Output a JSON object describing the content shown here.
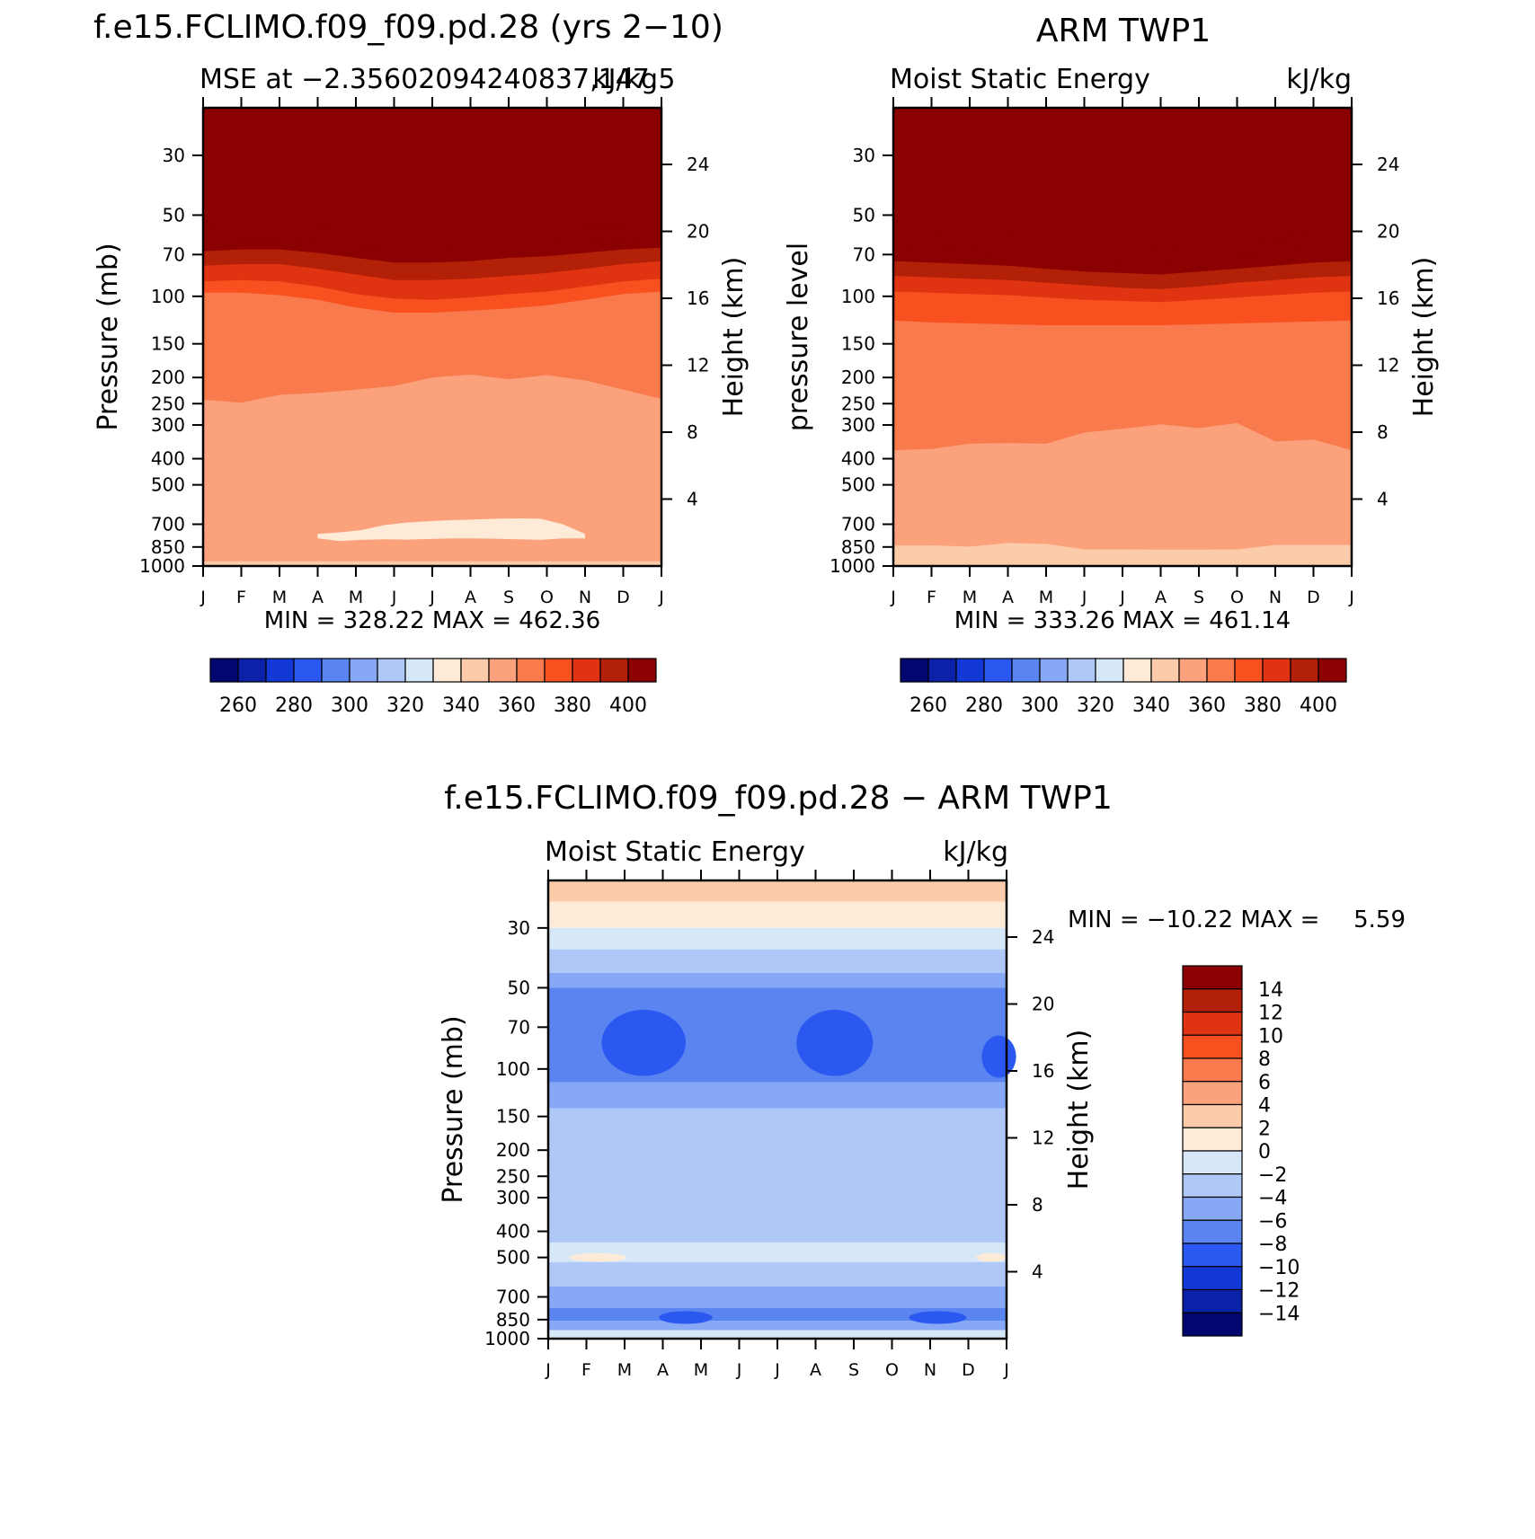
{
  "chart_data": [
    {
      "type": "heatmap",
      "title": "f.e15.FCLIMO.f09_f09.pd.28 (yrs 2−10)",
      "subtitle_left": "MSE at −2.35602094240837,147.5",
      "subtitle_right": "kJ/kg",
      "ylabel": "Pressure (mb)",
      "y2label": "Height (km)",
      "stats": "MIN = 328.22 MAX = 462.36",
      "months": [
        "J",
        "F",
        "M",
        "A",
        "M",
        "J",
        "J",
        "A",
        "S",
        "O",
        "N",
        "D",
        "J"
      ],
      "pressure_ticks": [
        30,
        50,
        70,
        100,
        150,
        200,
        250,
        300,
        400,
        500,
        700,
        850,
        1000
      ],
      "height_ticks": [
        24,
        20,
        16,
        12,
        8,
        4
      ],
      "ylim": [
        1000,
        20
      ],
      "contour_boundaries": [
        {
          "level": 400,
          "p": [
            56,
            54,
            53,
            54,
            56,
            58,
            58,
            57,
            56,
            56,
            55,
            55,
            54
          ]
        },
        {
          "level": 390,
          "p": [
            62,
            61,
            61,
            62,
            64,
            66,
            66,
            65,
            63,
            63,
            62,
            61,
            60
          ]
        },
        {
          "level": 380,
          "p": [
            68,
            67,
            67,
            69,
            72,
            75,
            75,
            74,
            72,
            71,
            69,
            67,
            66
          ]
        },
        {
          "level": 370,
          "p": [
            77,
            76,
            76,
            79,
            83,
            87,
            87,
            86,
            84,
            82,
            79,
            76,
            74
          ]
        },
        {
          "level": 360,
          "p": [
            88,
            87,
            88,
            92,
            98,
            102,
            103,
            101,
            98,
            96,
            92,
            88,
            86
          ]
        },
        {
          "level": 350,
          "p": [
            97,
            97,
            99,
            103,
            110,
            115,
            115,
            113,
            111,
            108,
            103,
            98,
            96
          ]
        },
        {
          "level": 340,
          "p": [
            242,
            248,
            232,
            228,
            222,
            215,
            200,
            195,
            203,
            196,
            205,
            222,
            240
          ]
        },
        {
          "level": 330,
          "p": [
            960,
            960,
            960,
            960,
            960,
            960,
            960,
            960,
            960,
            960,
            960,
            960,
            960
          ]
        }
      ],
      "low_region": {
        "level": 320,
        "months": [
          3.0,
          10.0
        ],
        "p_top": [
          760,
          750,
          735,
          705,
          690,
          682,
          676,
          672,
          668,
          666,
          668,
          700,
          760
        ],
        "p_bot": [
          790,
          808,
          800,
          796,
          798,
          794,
          790,
          790,
          792,
          796,
          800,
          790,
          790
        ]
      },
      "colorbar": {
        "labels": [
          "260",
          "280",
          "300",
          "320",
          "340",
          "360",
          "380",
          "400"
        ]
      }
    },
    {
      "type": "heatmap",
      "title": "ARM TWP1",
      "subtitle_left": "Moist Static Energy",
      "subtitle_right": "kJ/kg",
      "ylabel": "pressure level",
      "y2label": "Height (km)",
      "stats": "MIN = 333.26 MAX = 461.14",
      "months": [
        "J",
        "F",
        "M",
        "A",
        "M",
        "J",
        "J",
        "A",
        "S",
        "O",
        "N",
        "D",
        "J"
      ],
      "pressure_ticks": [
        30,
        50,
        70,
        100,
        150,
        200,
        250,
        300,
        400,
        500,
        700,
        850,
        1000
      ],
      "height_ticks": [
        24,
        20,
        16,
        12,
        8,
        4
      ],
      "ylim": [
        1000,
        20
      ],
      "contour_boundaries": [
        {
          "level": 400,
          "p": [
            58,
            59,
            60,
            60,
            61,
            63,
            64,
            65,
            64,
            62,
            61,
            59,
            58
          ]
        },
        {
          "level": 390,
          "p": [
            66,
            67,
            68,
            69,
            70,
            72,
            73,
            74,
            73,
            71,
            69,
            67,
            66
          ]
        },
        {
          "level": 380,
          "p": [
            74,
            75,
            76,
            77,
            79,
            81,
            82,
            83,
            81,
            79,
            77,
            75,
            74
          ]
        },
        {
          "level": 370,
          "p": [
            84,
            85,
            86,
            87,
            89,
            91,
            93,
            94,
            92,
            89,
            87,
            85,
            84
          ]
        },
        {
          "level": 360,
          "p": [
            96,
            97,
            98,
            99,
            101,
            103,
            104,
            105,
            103,
            101,
            99,
            97,
            96
          ]
        },
        {
          "level": 350,
          "p": [
            123,
            125,
            126,
            127,
            128,
            128,
            128,
            128,
            127,
            126,
            125,
            124,
            123
          ]
        },
        {
          "level": 340,
          "p": [
            372,
            368,
            352,
            350,
            352,
            320,
            310,
            298,
            308,
            295,
            345,
            340,
            372
          ]
        },
        {
          "level": 330,
          "p": [
            840,
            838,
            848,
            822,
            828,
            868,
            868,
            870,
            870,
            868,
            836,
            836,
            836
          ]
        }
      ],
      "colorbar": {
        "labels": [
          "260",
          "280",
          "300",
          "320",
          "340",
          "360",
          "380",
          "400"
        ]
      }
    },
    {
      "type": "heatmap",
      "title": "f.e15.FCLIMO.f09_f09.pd.28 − ARM TWP1",
      "subtitle_left": "Moist Static Energy",
      "subtitle_right": "kJ/kg",
      "ylabel": "Pressure (mb)",
      "y2label": "Height (km)",
      "stats_label": "MIN = −10.22 MAX =",
      "stats_value": "5.59",
      "months": [
        "J",
        "F",
        "M",
        "A",
        "M",
        "J",
        "J",
        "A",
        "S",
        "O",
        "N",
        "D",
        "J"
      ],
      "pressure_ticks": [
        30,
        50,
        70,
        100,
        150,
        200,
        250,
        300,
        400,
        500,
        700,
        850,
        1000
      ],
      "height_ticks": [
        24,
        20,
        16,
        12,
        8,
        4
      ],
      "ylim": [
        1000,
        20
      ],
      "bands": [
        {
          "level": 2,
          "p_bot": 24
        },
        {
          "level": 0,
          "p_bot": 30
        },
        {
          "level": -2,
          "p_bot": 36
        },
        {
          "level": -4,
          "p_bot": 44
        },
        {
          "level": -6,
          "p_bot": 50
        },
        {
          "level": -8,
          "p_bot": 112
        },
        {
          "level": -6,
          "p_bot": 140
        },
        {
          "level": -4,
          "p_bot": 440
        },
        {
          "level": -2,
          "p_bot": 520
        },
        {
          "level": -4,
          "p_bot": 640
        },
        {
          "level": -6,
          "p_bot": 770
        },
        {
          "level": -8,
          "p_bot": 860
        },
        {
          "level": -6,
          "p_bot": 930
        },
        {
          "level": -2,
          "p_bot": 1000
        }
      ],
      "blobs": [
        {
          "level": -10,
          "center": [
            2.5,
            80
          ],
          "size": [
            2.2,
            22
          ]
        },
        {
          "level": -10,
          "center": [
            7.5,
            80
          ],
          "size": [
            2.0,
            22
          ]
        },
        {
          "level": -10,
          "center": [
            11.8,
            90
          ],
          "size": [
            0.9,
            16
          ]
        },
        {
          "level": -10,
          "center": [
            3.6,
            835
          ],
          "size": [
            1.4,
            45
          ]
        },
        {
          "level": -10,
          "center": [
            10.2,
            835
          ],
          "size": [
            1.5,
            45
          ]
        },
        {
          "level": 0,
          "center": [
            1.3,
            500
          ],
          "size": [
            1.5,
            18
          ]
        },
        {
          "level": 0,
          "center": [
            11.6,
            500
          ],
          "size": [
            0.8,
            18
          ]
        }
      ],
      "colorbar": {
        "labels": [
          "14",
          "12",
          "10",
          "8",
          "6",
          "4",
          "2",
          "0",
          "−2",
          "−4",
          "−6",
          "−8",
          "−10",
          "−12",
          "−14"
        ]
      }
    }
  ],
  "colors": {
    "abs_scale": [
      "#02066f",
      "#0a21a8",
      "#1238d5",
      "#2a58f0",
      "#5a84f0",
      "#86a8f5",
      "#b0c8f8",
      "#d6e7f8",
      "#fdebd8",
      "#fccbaa",
      "#fba27d",
      "#f97a4c",
      "#f8501f",
      "#df3311",
      "#b22008",
      "#8b0000"
    ],
    "diff_scale": [
      "#8b0000",
      "#b22008",
      "#df3311",
      "#f8501f",
      "#f97a4c",
      "#fba27d",
      "#fccbaa",
      "#fdebd8",
      "#d6e7f8",
      "#b0c8f8",
      "#86a8f5",
      "#5a84f0",
      "#2a58f0",
      "#1238d5",
      "#0a21a8",
      "#02066f"
    ]
  }
}
